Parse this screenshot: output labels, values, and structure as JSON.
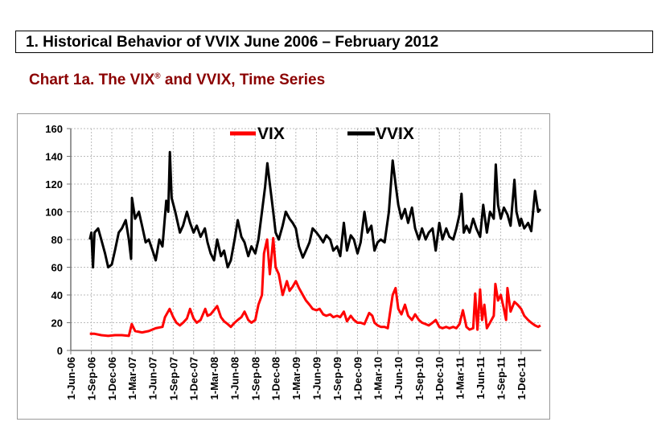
{
  "header": {
    "title": "1. Historical Behavior of VVIX June 2006 – February 2012"
  },
  "chart_heading": {
    "text": "Chart 1a.  The VIX",
    "mark": "®",
    "rest": " and VVIX, Time Series"
  },
  "chart_data": {
    "type": "line",
    "title": "The VIX and VVIX, Time Series",
    "xlabel": "",
    "ylabel": "",
    "ylim": [
      0,
      160
    ],
    "yticks": [
      0,
      20,
      40,
      60,
      80,
      100,
      120,
      140,
      160
    ],
    "xlim": [
      "2006-06-01",
      "2012-02-29"
    ],
    "xtick_labels": [
      "1-Jun-06",
      "1-Sep-06",
      "1-Dec-06",
      "1-Mar-07",
      "1-Jun-07",
      "1-Sep-07",
      "1-Dec-07",
      "1-Mar-08",
      "1-Jun-08",
      "1-Sep-08",
      "1-Dec-08",
      "1-Mar-09",
      "1-Jun-09",
      "1-Sep-09",
      "1-Dec-09",
      "1-Mar-10",
      "1-Jun-10",
      "1-Sep-10",
      "1-Dec-10",
      "1-Mar-11",
      "1-Jun-11",
      "1-Sep-11",
      "1-Dec-11"
    ],
    "xtick_dates": [
      "2006-06-01",
      "2006-09-01",
      "2006-12-01",
      "2007-03-01",
      "2007-06-01",
      "2007-09-01",
      "2007-12-01",
      "2008-03-01",
      "2008-06-01",
      "2008-09-01",
      "2008-12-01",
      "2009-03-01",
      "2009-06-01",
      "2009-09-01",
      "2009-12-01",
      "2010-03-01",
      "2010-06-01",
      "2010-09-01",
      "2010-12-01",
      "2011-03-01",
      "2011-06-01",
      "2011-09-01",
      "2011-12-01"
    ],
    "grid": true,
    "legend": "top-center",
    "series": [
      {
        "name": "VIX",
        "color": "#ff0000",
        "points": [
          [
            "2006-08-25",
            12
          ],
          [
            "2006-09-15",
            12
          ],
          [
            "2006-10-15",
            11
          ],
          [
            "2006-11-15",
            10.5
          ],
          [
            "2006-12-15",
            11
          ],
          [
            "2007-01-15",
            11
          ],
          [
            "2007-02-15",
            10.5
          ],
          [
            "2007-02-28",
            19
          ],
          [
            "2007-03-15",
            14
          ],
          [
            "2007-04-15",
            13
          ],
          [
            "2007-05-15",
            14
          ],
          [
            "2007-06-15",
            16
          ],
          [
            "2007-07-15",
            17
          ],
          [
            "2007-07-26",
            24
          ],
          [
            "2007-08-16",
            30
          ],
          [
            "2007-09-01",
            24
          ],
          [
            "2007-09-15",
            20
          ],
          [
            "2007-10-01",
            18
          ],
          [
            "2007-10-15",
            20
          ],
          [
            "2007-11-01",
            23
          ],
          [
            "2007-11-15",
            30
          ],
          [
            "2007-12-01",
            23
          ],
          [
            "2007-12-15",
            20
          ],
          [
            "2008-01-01",
            22
          ],
          [
            "2008-01-22",
            30
          ],
          [
            "2008-02-01",
            25
          ],
          [
            "2008-02-15",
            26
          ],
          [
            "2008-03-15",
            32
          ],
          [
            "2008-04-01",
            24
          ],
          [
            "2008-04-15",
            21
          ],
          [
            "2008-05-01",
            19
          ],
          [
            "2008-05-15",
            17
          ],
          [
            "2008-06-01",
            20
          ],
          [
            "2008-06-15",
            22
          ],
          [
            "2008-07-01",
            24
          ],
          [
            "2008-07-15",
            28
          ],
          [
            "2008-08-01",
            22
          ],
          [
            "2008-08-15",
            20
          ],
          [
            "2008-09-01",
            22
          ],
          [
            "2008-09-15",
            33
          ],
          [
            "2008-10-01",
            40
          ],
          [
            "2008-10-10",
            70
          ],
          [
            "2008-10-24",
            80
          ],
          [
            "2008-11-05",
            55
          ],
          [
            "2008-11-20",
            81
          ],
          [
            "2008-12-01",
            60
          ],
          [
            "2008-12-15",
            55
          ],
          [
            "2009-01-01",
            40
          ],
          [
            "2009-01-20",
            50
          ],
          [
            "2009-02-01",
            43
          ],
          [
            "2009-02-15",
            46
          ],
          [
            "2009-03-01",
            50
          ],
          [
            "2009-03-15",
            45
          ],
          [
            "2009-04-01",
            40
          ],
          [
            "2009-04-15",
            36
          ],
          [
            "2009-05-01",
            33
          ],
          [
            "2009-05-15",
            30
          ],
          [
            "2009-06-01",
            29
          ],
          [
            "2009-06-15",
            30
          ],
          [
            "2009-07-01",
            26
          ],
          [
            "2009-07-15",
            25
          ],
          [
            "2009-08-01",
            26
          ],
          [
            "2009-08-15",
            24
          ],
          [
            "2009-09-01",
            25
          ],
          [
            "2009-09-15",
            24
          ],
          [
            "2009-10-01",
            28
          ],
          [
            "2009-10-15",
            21
          ],
          [
            "2009-11-01",
            25
          ],
          [
            "2009-11-15",
            22
          ],
          [
            "2009-12-01",
            20
          ],
          [
            "2009-12-15",
            20
          ],
          [
            "2010-01-01",
            19
          ],
          [
            "2010-01-22",
            27
          ],
          [
            "2010-02-05",
            25
          ],
          [
            "2010-02-15",
            20
          ],
          [
            "2010-03-01",
            18
          ],
          [
            "2010-03-15",
            17
          ],
          [
            "2010-04-01",
            17
          ],
          [
            "2010-04-15",
            16
          ],
          [
            "2010-05-07",
            40
          ],
          [
            "2010-05-20",
            45
          ],
          [
            "2010-06-01",
            30
          ],
          [
            "2010-06-15",
            26
          ],
          [
            "2010-07-01",
            33
          ],
          [
            "2010-07-15",
            25
          ],
          [
            "2010-08-01",
            22
          ],
          [
            "2010-08-15",
            26
          ],
          [
            "2010-09-01",
            22
          ],
          [
            "2010-09-15",
            20
          ],
          [
            "2010-10-01",
            19
          ],
          [
            "2010-10-15",
            18
          ],
          [
            "2010-11-01",
            20
          ],
          [
            "2010-11-15",
            22
          ],
          [
            "2010-12-01",
            17
          ],
          [
            "2010-12-15",
            16
          ],
          [
            "2011-01-01",
            17
          ],
          [
            "2011-01-15",
            16
          ],
          [
            "2011-02-01",
            17
          ],
          [
            "2011-02-15",
            16
          ],
          [
            "2011-03-01",
            19
          ],
          [
            "2011-03-16",
            29
          ],
          [
            "2011-04-01",
            17
          ],
          [
            "2011-04-15",
            15
          ],
          [
            "2011-05-01",
            16
          ],
          [
            "2011-05-10",
            41
          ],
          [
            "2011-05-20",
            15
          ],
          [
            "2011-06-01",
            44
          ],
          [
            "2011-06-10",
            22
          ],
          [
            "2011-06-20",
            33
          ],
          [
            "2011-07-01",
            16
          ],
          [
            "2011-07-15",
            20
          ],
          [
            "2011-08-01",
            25
          ],
          [
            "2011-08-08",
            48
          ],
          [
            "2011-08-20",
            36
          ],
          [
            "2011-09-01",
            40
          ],
          [
            "2011-09-15",
            30
          ],
          [
            "2011-09-25",
            22
          ],
          [
            "2011-10-01",
            45
          ],
          [
            "2011-10-15",
            28
          ],
          [
            "2011-11-01",
            35
          ],
          [
            "2011-11-15",
            33
          ],
          [
            "2011-12-01",
            30
          ],
          [
            "2011-12-15",
            25
          ],
          [
            "2012-01-01",
            22
          ],
          [
            "2012-01-15",
            20
          ],
          [
            "2012-02-01",
            18
          ],
          [
            "2012-02-15",
            17
          ],
          [
            "2012-02-25",
            18
          ]
        ]
      },
      {
        "name": "VVIX",
        "color": "#000000",
        "points": [
          [
            "2006-08-25",
            80
          ],
          [
            "2006-09-01",
            85
          ],
          [
            "2006-09-08",
            60
          ],
          [
            "2006-09-15",
            85
          ],
          [
            "2006-10-01",
            88
          ],
          [
            "2006-10-15",
            80
          ],
          [
            "2006-11-01",
            70
          ],
          [
            "2006-11-15",
            60
          ],
          [
            "2006-12-01",
            62
          ],
          [
            "2006-12-15",
            72
          ],
          [
            "2007-01-01",
            85
          ],
          [
            "2007-01-15",
            88
          ],
          [
            "2007-02-01",
            94
          ],
          [
            "2007-02-15",
            80
          ],
          [
            "2007-02-25",
            66
          ],
          [
            "2007-03-01",
            110
          ],
          [
            "2007-03-15",
            95
          ],
          [
            "2007-04-01",
            100
          ],
          [
            "2007-04-15",
            90
          ],
          [
            "2007-05-01",
            78
          ],
          [
            "2007-05-15",
            80
          ],
          [
            "2007-06-01",
            72
          ],
          [
            "2007-06-15",
            65
          ],
          [
            "2007-07-01",
            80
          ],
          [
            "2007-07-15",
            75
          ],
          [
            "2007-08-01",
            108
          ],
          [
            "2007-08-10",
            100
          ],
          [
            "2007-08-17",
            143
          ],
          [
            "2007-08-25",
            110
          ],
          [
            "2007-09-10",
            100
          ],
          [
            "2007-10-01",
            85
          ],
          [
            "2007-10-15",
            90
          ],
          [
            "2007-11-01",
            100
          ],
          [
            "2007-11-15",
            92
          ],
          [
            "2007-12-01",
            85
          ],
          [
            "2007-12-15",
            90
          ],
          [
            "2008-01-01",
            82
          ],
          [
            "2008-01-20",
            88
          ],
          [
            "2008-02-01",
            78
          ],
          [
            "2008-02-15",
            70
          ],
          [
            "2008-03-01",
            65
          ],
          [
            "2008-03-15",
            80
          ],
          [
            "2008-04-01",
            68
          ],
          [
            "2008-04-15",
            72
          ],
          [
            "2008-05-01",
            60
          ],
          [
            "2008-05-15",
            65
          ],
          [
            "2008-06-01",
            80
          ],
          [
            "2008-06-15",
            94
          ],
          [
            "2008-07-01",
            82
          ],
          [
            "2008-07-15",
            78
          ],
          [
            "2008-08-01",
            68
          ],
          [
            "2008-08-15",
            75
          ],
          [
            "2008-09-01",
            70
          ],
          [
            "2008-09-15",
            80
          ],
          [
            "2008-10-01",
            100
          ],
          [
            "2008-10-15",
            118
          ],
          [
            "2008-10-25",
            135
          ],
          [
            "2008-11-05",
            120
          ],
          [
            "2008-11-20",
            100
          ],
          [
            "2008-12-01",
            85
          ],
          [
            "2008-12-15",
            80
          ],
          [
            "2009-01-01",
            90
          ],
          [
            "2009-01-15",
            100
          ],
          [
            "2009-02-01",
            95
          ],
          [
            "2009-02-15",
            92
          ],
          [
            "2009-03-01",
            88
          ],
          [
            "2009-03-15",
            75
          ],
          [
            "2009-04-01",
            67
          ],
          [
            "2009-04-15",
            72
          ],
          [
            "2009-05-01",
            78
          ],
          [
            "2009-05-15",
            88
          ],
          [
            "2009-06-01",
            85
          ],
          [
            "2009-06-15",
            82
          ],
          [
            "2009-07-01",
            78
          ],
          [
            "2009-07-15",
            83
          ],
          [
            "2009-08-01",
            80
          ],
          [
            "2009-08-15",
            72
          ],
          [
            "2009-09-01",
            75
          ],
          [
            "2009-09-15",
            68
          ],
          [
            "2009-10-01",
            92
          ],
          [
            "2009-10-15",
            72
          ],
          [
            "2009-11-01",
            83
          ],
          [
            "2009-11-15",
            80
          ],
          [
            "2009-12-01",
            70
          ],
          [
            "2009-12-15",
            78
          ],
          [
            "2010-01-01",
            100
          ],
          [
            "2010-01-15",
            85
          ],
          [
            "2010-02-01",
            90
          ],
          [
            "2010-02-15",
            72
          ],
          [
            "2010-03-01",
            78
          ],
          [
            "2010-03-15",
            80
          ],
          [
            "2010-04-01",
            78
          ],
          [
            "2010-04-20",
            100
          ],
          [
            "2010-05-07",
            137
          ],
          [
            "2010-05-20",
            120
          ],
          [
            "2010-06-01",
            105
          ],
          [
            "2010-06-15",
            95
          ],
          [
            "2010-07-01",
            102
          ],
          [
            "2010-07-15",
            92
          ],
          [
            "2010-08-01",
            103
          ],
          [
            "2010-08-15",
            88
          ],
          [
            "2010-09-01",
            80
          ],
          [
            "2010-09-15",
            88
          ],
          [
            "2010-10-01",
            80
          ],
          [
            "2010-10-15",
            85
          ],
          [
            "2010-11-01",
            88
          ],
          [
            "2010-11-15",
            72
          ],
          [
            "2010-12-01",
            92
          ],
          [
            "2010-12-15",
            80
          ],
          [
            "2011-01-01",
            88
          ],
          [
            "2011-01-15",
            82
          ],
          [
            "2011-02-01",
            80
          ],
          [
            "2011-02-15",
            88
          ],
          [
            "2011-03-01",
            98
          ],
          [
            "2011-03-10",
            113
          ],
          [
            "2011-03-20",
            85
          ],
          [
            "2011-04-01",
            90
          ],
          [
            "2011-04-15",
            85
          ],
          [
            "2011-05-01",
            95
          ],
          [
            "2011-05-15",
            88
          ],
          [
            "2011-06-01",
            82
          ],
          [
            "2011-06-15",
            105
          ],
          [
            "2011-07-01",
            85
          ],
          [
            "2011-07-15",
            100
          ],
          [
            "2011-08-01",
            95
          ],
          [
            "2011-08-10",
            134
          ],
          [
            "2011-08-20",
            105
          ],
          [
            "2011-09-01",
            95
          ],
          [
            "2011-09-15",
            103
          ],
          [
            "2011-10-01",
            98
          ],
          [
            "2011-10-15",
            90
          ],
          [
            "2011-11-01",
            123
          ],
          [
            "2011-11-10",
            100
          ],
          [
            "2011-11-25",
            90
          ],
          [
            "2011-12-01",
            95
          ],
          [
            "2011-12-15",
            88
          ],
          [
            "2012-01-01",
            92
          ],
          [
            "2012-01-15",
            86
          ],
          [
            "2012-02-01",
            115
          ],
          [
            "2012-02-15",
            100
          ],
          [
            "2012-02-25",
            102
          ]
        ]
      }
    ]
  }
}
